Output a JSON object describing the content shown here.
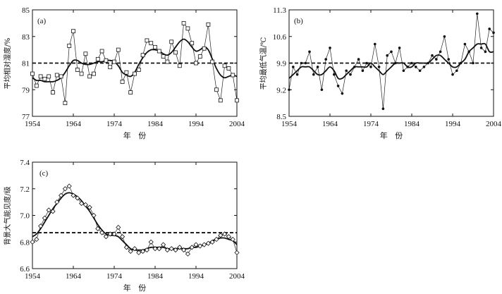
{
  "chart_data": [
    {
      "type": "line",
      "panel_label": "(a)",
      "xlabel": "年   份",
      "ylabel": "平均相对湿度/%",
      "xlim": [
        1954,
        2004
      ],
      "ylim": [
        77,
        85
      ],
      "xticks": [
        1954,
        1964,
        1974,
        1984,
        1994,
        2004
      ],
      "yticks": [
        77,
        79,
        81,
        83,
        85
      ],
      "marker": "square",
      "mean_line": 81.0,
      "years": [
        1954,
        1955,
        1956,
        1957,
        1958,
        1959,
        1960,
        1961,
        1962,
        1963,
        1964,
        1965,
        1966,
        1967,
        1968,
        1969,
        1970,
        1971,
        1972,
        1973,
        1974,
        1975,
        1976,
        1977,
        1978,
        1979,
        1980,
        1981,
        1982,
        1983,
        1984,
        1985,
        1986,
        1987,
        1988,
        1989,
        1990,
        1991,
        1992,
        1993,
        1994,
        1995,
        1996,
        1997,
        1998,
        1999,
        2000,
        2001,
        2002,
        2003,
        2004
      ],
      "series": [
        {
          "name": "annual",
          "values": [
            80.2,
            79.3,
            80.0,
            79.8,
            80.0,
            78.8,
            80.1,
            80.0,
            78.0,
            82.3,
            83.4,
            80.5,
            80.2,
            81.7,
            80.0,
            80.2,
            81.3,
            81.9,
            81.2,
            80.7,
            81.1,
            82.0,
            79.6,
            80.3,
            78.8,
            80.2,
            80.5,
            81.6,
            82.7,
            82.5,
            82.2,
            81.9,
            81.5,
            81.1,
            82.6,
            81.8,
            80.8,
            84.0,
            83.6,
            82.5,
            81.0,
            81.5,
            82.1,
            83.9,
            81.1,
            79.0,
            78.2,
            80.8,
            80.6,
            80.1,
            78.2
          ]
        },
        {
          "name": "smoothed",
          "values": [
            79.9,
            79.7,
            79.7,
            79.6,
            79.6,
            79.6,
            79.7,
            79.9,
            80.3,
            80.8,
            81.2,
            81.2,
            81.0,
            80.9,
            80.9,
            81.0,
            81.1,
            81.1,
            81.2,
            81.2,
            81.1,
            80.8,
            80.3,
            80.1,
            80.0,
            80.3,
            80.9,
            81.4,
            81.8,
            82.0,
            82.0,
            81.9,
            81.7,
            81.6,
            81.8,
            82.2,
            82.6,
            82.8,
            82.6,
            82.2,
            81.9,
            82.0,
            82.2,
            82.0,
            81.3,
            80.6,
            80.1,
            79.9,
            80.0,
            80.1,
            80.0
          ]
        }
      ]
    },
    {
      "type": "line",
      "panel_label": "(b)",
      "xlabel": "年   份",
      "ylabel": "平均最低气温/℃",
      "xlim": [
        1954,
        2004
      ],
      "ylim": [
        8.5,
        11.3
      ],
      "xticks": [
        1954,
        1964,
        1974,
        1984,
        1994,
        2004
      ],
      "yticks": [
        8.5,
        9.2,
        9.9,
        10.6,
        11.3
      ],
      "ytick_labels": [
        "8.5",
        "9.2",
        "9.9",
        "10.6",
        "11.3"
      ],
      "marker": "dot",
      "mean_line": 9.9,
      "years": [
        1954,
        1955,
        1956,
        1957,
        1958,
        1959,
        1960,
        1961,
        1962,
        1963,
        1964,
        1965,
        1966,
        1967,
        1968,
        1969,
        1970,
        1971,
        1972,
        1973,
        1974,
        1975,
        1976,
        1977,
        1978,
        1979,
        1980,
        1981,
        1982,
        1983,
        1984,
        1985,
        1986,
        1987,
        1988,
        1989,
        1990,
        1991,
        1992,
        1993,
        1994,
        1995,
        1996,
        1997,
        1998,
        1999,
        2000,
        2001,
        2002,
        2003,
        2004
      ],
      "series": [
        {
          "name": "annual",
          "values": [
            9.2,
            9.8,
            9.6,
            9.9,
            9.9,
            10.2,
            9.6,
            9.8,
            9.2,
            10.0,
            10.3,
            9.6,
            9.3,
            9.1,
            9.7,
            9.6,
            9.8,
            10.0,
            9.7,
            9.9,
            9.8,
            10.4,
            9.8,
            8.7,
            10.1,
            10.2,
            9.9,
            10.3,
            9.7,
            9.8,
            9.9,
            9.8,
            9.7,
            9.8,
            9.9,
            10.1,
            10.0,
            10.2,
            10.6,
            10.0,
            9.6,
            9.7,
            9.9,
            10.4,
            10.2,
            9.9,
            11.2,
            10.3,
            10.2,
            10.8,
            10.7
          ]
        },
        {
          "name": "smoothed",
          "values": [
            9.5,
            9.6,
            9.7,
            9.8,
            9.8,
            9.8,
            9.7,
            9.6,
            9.6,
            9.7,
            9.8,
            9.7,
            9.5,
            9.5,
            9.6,
            9.7,
            9.8,
            9.8,
            9.8,
            9.8,
            9.9,
            9.8,
            9.7,
            9.6,
            9.7,
            9.8,
            9.9,
            9.9,
            9.9,
            9.8,
            9.8,
            9.9,
            9.9,
            9.9,
            9.9,
            10.0,
            10.1,
            10.1,
            10.0,
            9.9,
            9.8,
            9.8,
            9.9,
            10.0,
            10.2,
            10.3,
            10.4,
            10.4,
            10.4,
            10.2,
            10.2
          ]
        }
      ]
    },
    {
      "type": "line",
      "panel_label": "(c)",
      "xlabel": "年   份",
      "ylabel": "背景大气能见度/级",
      "xlim": [
        1954,
        2004
      ],
      "ylim": [
        6.6,
        7.4
      ],
      "xticks": [
        1954,
        1964,
        1974,
        1984,
        1994,
        2004
      ],
      "yticks": [
        6.6,
        6.8,
        7.0,
        7.2,
        7.4
      ],
      "ytick_labels": [
        "6.6",
        "6.8",
        "7.0",
        "7.2",
        "7.4"
      ],
      "marker": "diamond",
      "mean_line": 6.87,
      "years": [
        1954,
        1955,
        1956,
        1957,
        1958,
        1959,
        1960,
        1961,
        1962,
        1963,
        1964,
        1965,
        1966,
        1967,
        1968,
        1969,
        1970,
        1971,
        1972,
        1973,
        1974,
        1975,
        1976,
        1977,
        1978,
        1979,
        1980,
        1981,
        1982,
        1983,
        1984,
        1985,
        1986,
        1987,
        1988,
        1989,
        1990,
        1991,
        1992,
        1993,
        1994,
        1995,
        1996,
        1997,
        1998,
        1999,
        2000,
        2001,
        2002,
        2003,
        2004
      ],
      "series": [
        {
          "name": "annual",
          "values": [
            6.8,
            6.82,
            6.92,
            6.98,
            7.04,
            7.03,
            7.1,
            7.15,
            7.2,
            7.22,
            7.15,
            7.13,
            7.09,
            7.08,
            7.06,
            7.0,
            6.9,
            6.87,
            6.84,
            6.86,
            6.86,
            6.91,
            6.84,
            6.76,
            6.73,
            6.75,
            6.72,
            6.73,
            6.74,
            6.8,
            6.75,
            6.75,
            6.78,
            6.74,
            6.75,
            6.74,
            6.76,
            6.74,
            6.71,
            6.76,
            6.78,
            6.77,
            6.78,
            6.79,
            6.8,
            6.82,
            6.85,
            6.86,
            6.84,
            6.82,
            6.72
          ]
        },
        {
          "name": "smoothed",
          "values": [
            6.84,
            6.86,
            6.9,
            6.95,
            7.0,
            7.05,
            7.09,
            7.13,
            7.16,
            7.17,
            7.16,
            7.14,
            7.11,
            7.07,
            7.03,
            6.98,
            6.93,
            6.89,
            6.86,
            6.85,
            6.85,
            6.84,
            6.81,
            6.78,
            6.75,
            6.74,
            6.74,
            6.74,
            6.75,
            6.76,
            6.76,
            6.76,
            6.76,
            6.75,
            6.75,
            6.75,
            6.75,
            6.75,
            6.75,
            6.76,
            6.76,
            6.77,
            6.78,
            6.79,
            6.81,
            6.82,
            6.83,
            6.83,
            6.82,
            6.81,
            6.78
          ]
        }
      ]
    }
  ]
}
